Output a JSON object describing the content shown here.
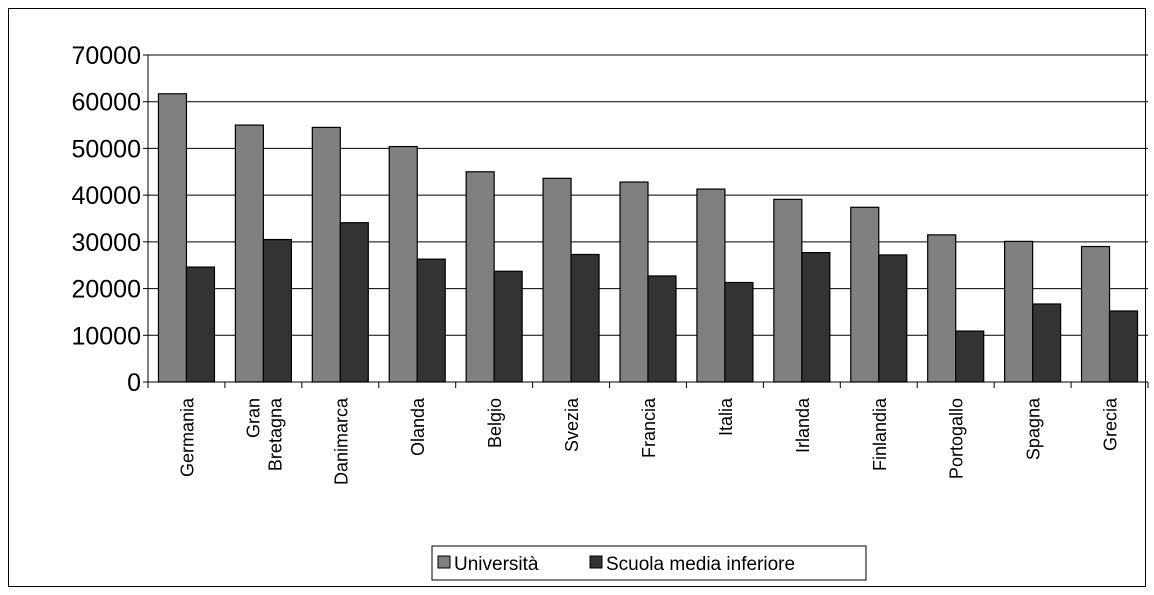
{
  "chart_data": {
    "type": "bar",
    "categories": [
      [
        "Germania"
      ],
      [
        "Gran",
        "Bretagna"
      ],
      [
        "Danimarca"
      ],
      [
        "Olanda"
      ],
      [
        "Belgio"
      ],
      [
        "Svezia"
      ],
      [
        "Francia"
      ],
      [
        "Italia"
      ],
      [
        "Irlanda"
      ],
      [
        "Finlandia"
      ],
      [
        "Portogallo"
      ],
      [
        "Spagna"
      ],
      [
        "Grecia"
      ]
    ],
    "series": [
      {
        "name": "Università",
        "color": "#808080",
        "values": [
          61700,
          55000,
          54500,
          50400,
          45000,
          43600,
          42800,
          41300,
          39100,
          37400,
          31500,
          30100,
          29000
        ]
      },
      {
        "name": "Scuola media inferiore",
        "color": "#333333",
        "values": [
          24600,
          30500,
          34100,
          26300,
          23700,
          27300,
          22700,
          21300,
          27700,
          27200,
          10900,
          16700,
          15200
        ]
      }
    ],
    "yticks": [
      "0",
      "10000",
      "20000",
      "30000",
      "40000",
      "50000",
      "60000",
      "70000"
    ],
    "ylim": [
      0,
      70000
    ],
    "grid": true,
    "legend": "bottom",
    "title": "",
    "xlabel": "",
    "ylabel": ""
  }
}
